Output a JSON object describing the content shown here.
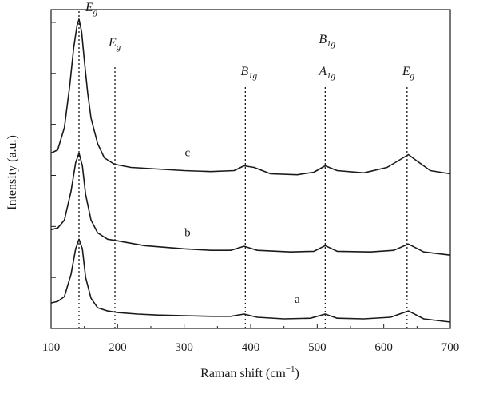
{
  "chart_data": {
    "type": "line",
    "title": "",
    "xlabel": "Raman shift (cm",
    "xlabel_superscript": "−1",
    "xlabel_close": ")",
    "ylabel": "Intensity (a.u.)",
    "xlim": [
      100,
      700
    ],
    "ylim": [
      0,
      10
    ],
    "x_ticks": [
      "100",
      "200",
      "300",
      "400",
      "500",
      "600",
      "700"
    ],
    "y_ticks": "unlabeled",
    "grid": false,
    "legend": "none",
    "series": [
      {
        "name": "a",
        "color": "#1a1a1a",
        "points": [
          [
            100,
            0.8
          ],
          [
            110,
            0.85
          ],
          [
            120,
            1.0
          ],
          [
            130,
            1.7
          ],
          [
            137,
            2.5
          ],
          [
            142,
            2.8
          ],
          [
            147,
            2.5
          ],
          [
            152,
            1.6
          ],
          [
            160,
            0.95
          ],
          [
            170,
            0.65
          ],
          [
            185,
            0.55
          ],
          [
            200,
            0.5
          ],
          [
            230,
            0.45
          ],
          [
            260,
            0.42
          ],
          [
            300,
            0.4
          ],
          [
            340,
            0.38
          ],
          [
            370,
            0.38
          ],
          [
            390,
            0.45
          ],
          [
            410,
            0.35
          ],
          [
            450,
            0.3
          ],
          [
            490,
            0.32
          ],
          [
            512,
            0.45
          ],
          [
            530,
            0.32
          ],
          [
            570,
            0.3
          ],
          [
            610,
            0.35
          ],
          [
            637,
            0.55
          ],
          [
            660,
            0.3
          ],
          [
            700,
            0.2
          ]
        ]
      },
      {
        "name": "b",
        "color": "#1a1a1a",
        "points": [
          [
            100,
            3.1
          ],
          [
            110,
            3.15
          ],
          [
            120,
            3.4
          ],
          [
            130,
            4.3
          ],
          [
            137,
            5.2
          ],
          [
            142,
            5.5
          ],
          [
            147,
            5.1
          ],
          [
            152,
            4.2
          ],
          [
            160,
            3.4
          ],
          [
            170,
            3.0
          ],
          [
            185,
            2.8
          ],
          [
            200,
            2.75
          ],
          [
            240,
            2.6
          ],
          [
            300,
            2.5
          ],
          [
            340,
            2.45
          ],
          [
            370,
            2.45
          ],
          [
            390,
            2.58
          ],
          [
            410,
            2.45
          ],
          [
            460,
            2.4
          ],
          [
            495,
            2.42
          ],
          [
            512,
            2.6
          ],
          [
            530,
            2.42
          ],
          [
            580,
            2.4
          ],
          [
            615,
            2.45
          ],
          [
            637,
            2.65
          ],
          [
            660,
            2.4
          ],
          [
            700,
            2.3
          ]
        ]
      },
      {
        "name": "c",
        "color": "#1a1a1a",
        "points": [
          [
            100,
            5.5
          ],
          [
            110,
            5.6
          ],
          [
            120,
            6.3
          ],
          [
            128,
            7.6
          ],
          [
            134,
            8.8
          ],
          [
            139,
            9.5
          ],
          [
            142,
            9.7
          ],
          [
            146,
            9.3
          ],
          [
            150,
            8.4
          ],
          [
            155,
            7.4
          ],
          [
            160,
            6.6
          ],
          [
            170,
            5.8
          ],
          [
            180,
            5.35
          ],
          [
            195,
            5.15
          ],
          [
            220,
            5.05
          ],
          [
            260,
            5.0
          ],
          [
            300,
            4.95
          ],
          [
            340,
            4.92
          ],
          [
            375,
            4.95
          ],
          [
            390,
            5.1
          ],
          [
            405,
            5.05
          ],
          [
            430,
            4.85
          ],
          [
            470,
            4.82
          ],
          [
            495,
            4.9
          ],
          [
            512,
            5.1
          ],
          [
            530,
            4.95
          ],
          [
            570,
            4.88
          ],
          [
            605,
            5.05
          ],
          [
            625,
            5.3
          ],
          [
            637,
            5.45
          ],
          [
            650,
            5.25
          ],
          [
            670,
            4.95
          ],
          [
            700,
            4.85
          ]
        ]
      }
    ],
    "curve_labels": [
      {
        "text": "a",
        "x": 470,
        "y": 0.8
      },
      {
        "text": "b",
        "x": 305,
        "y": 2.9
      },
      {
        "text": "c",
        "x": 305,
        "y": 5.4
      }
    ],
    "peaks": [
      {
        "x": 142,
        "symbol": "E",
        "sub": "g",
        "top_y": 10.0,
        "text_y": 9.95,
        "text_dx": 8
      },
      {
        "x": 196,
        "symbol": "E",
        "sub": "g",
        "top_y": 8.2,
        "text_y": 8.85,
        "text_dx": -8
      },
      {
        "x": 392,
        "symbol": "B",
        "sub": "1g",
        "top_y": 7.6,
        "text_y": 7.95,
        "text_dx": -6
      },
      {
        "x": 512,
        "symbol": "A",
        "sub": "1g",
        "top_y": 7.6,
        "text_y": 7.95,
        "text_dx": -8,
        "extra": {
          "symbol": "B",
          "sub": "1g",
          "text_y": 8.95
        }
      },
      {
        "x": 635,
        "symbol": "E",
        "sub": "g",
        "top_y": 7.6,
        "text_y": 7.95,
        "text_dx": -6
      }
    ]
  }
}
